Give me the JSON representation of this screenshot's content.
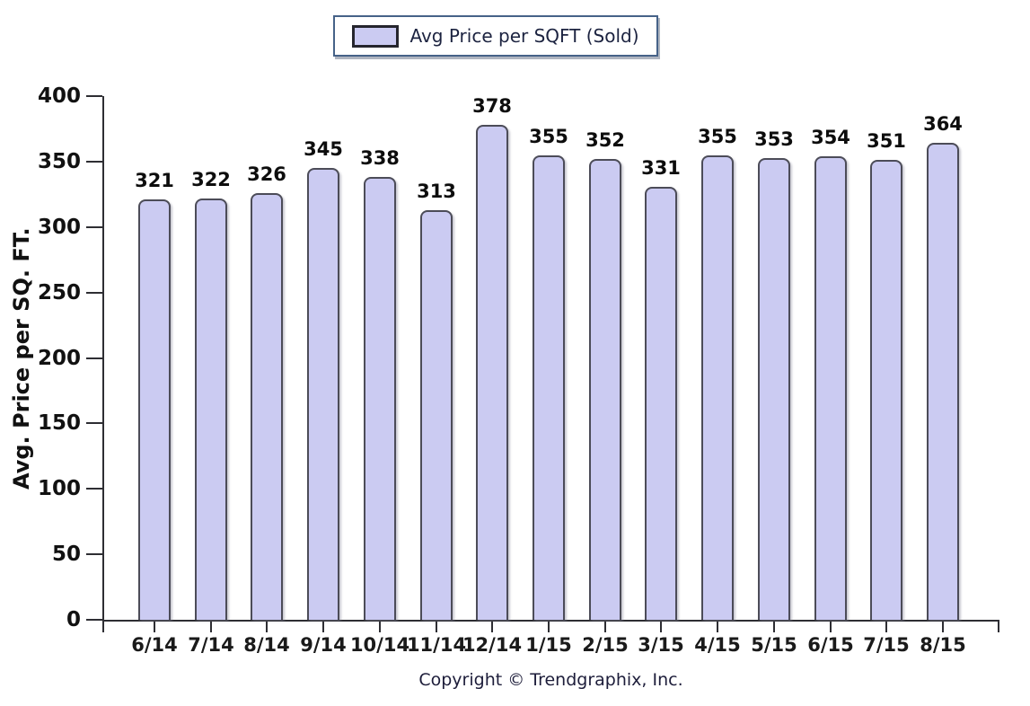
{
  "legend": {
    "label": "Avg Price per SQFT (Sold)"
  },
  "y_axis": {
    "title": "Avg. Price per SQ. FT."
  },
  "footer": {
    "copyright": "Copyright © Trendgraphix, Inc."
  },
  "colors": {
    "bar_fill": "#cbcbf2",
    "bar_border": "#4c4c58",
    "axis": "#2e2e33",
    "legend_border": "#466288",
    "label_text": "#111111"
  },
  "chart_data": {
    "type": "bar",
    "title": "",
    "xlabel": "",
    "ylabel": "Avg. Price per SQ. FT.",
    "categories": [
      "6/14",
      "7/14",
      "8/14",
      "9/14",
      "10/14",
      "11/14",
      "12/14",
      "1/15",
      "2/15",
      "3/15",
      "4/15",
      "5/15",
      "6/15",
      "7/15",
      "8/15"
    ],
    "values": [
      321,
      322,
      326,
      345,
      338,
      313,
      378,
      355,
      352,
      331,
      355,
      353,
      354,
      351,
      364
    ],
    "series_label": "Avg Price per SQFT (Sold)",
    "ylim": [
      0,
      400
    ],
    "ytick_step": 50,
    "grid": false,
    "bar_value_labels": true,
    "legend_position": "top-center"
  }
}
